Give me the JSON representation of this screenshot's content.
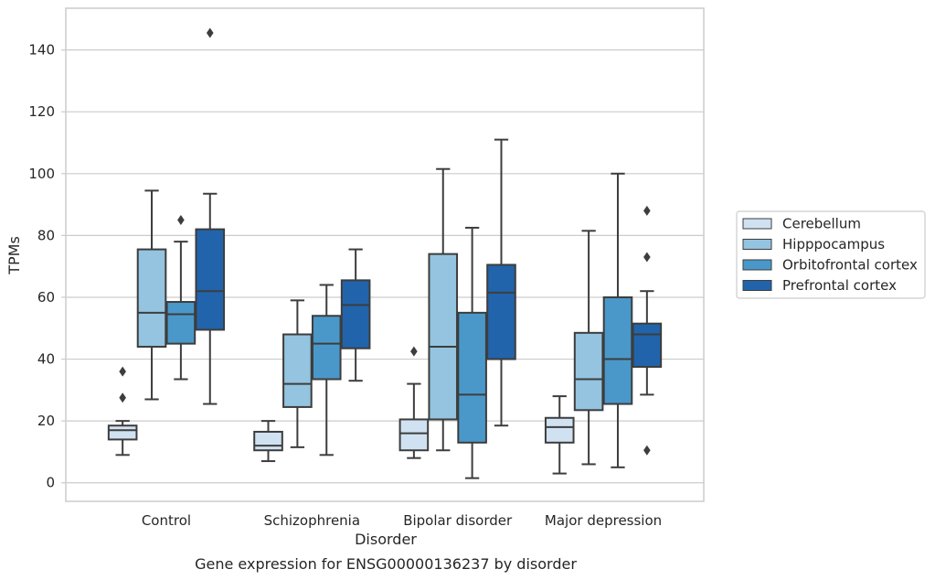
{
  "chart_data": {
    "type": "box",
    "title": "",
    "caption": "Gene expression for ENSG00000136237 by disorder",
    "xlabel": "Disorder",
    "ylabel": "TPMs",
    "ylim": [
      -6,
      153.5
    ],
    "yticks": [
      0,
      20,
      40,
      60,
      80,
      100,
      120,
      140
    ],
    "grid": "horizontal",
    "legend_position": "right",
    "categories": [
      "Control",
      "Schizophrenia",
      "Bipolar disorder",
      "Major depression"
    ],
    "series": [
      {
        "name": "Cerebellum",
        "color": "#d0e1f2",
        "boxes": [
          {
            "whisker_low": 9,
            "q1": 14,
            "median": 17,
            "q3": 18.5,
            "whisker_high": 20,
            "outliers": [
              27.5,
              36
            ]
          },
          {
            "whisker_low": 7,
            "q1": 10.5,
            "median": 12,
            "q3": 16.5,
            "whisker_high": 20,
            "outliers": []
          },
          {
            "whisker_low": 8,
            "q1": 10.5,
            "median": 16,
            "q3": 20.5,
            "whisker_high": 32,
            "outliers": [
              42.5
            ]
          },
          {
            "whisker_low": 3,
            "q1": 13,
            "median": 18,
            "q3": 21,
            "whisker_high": 28,
            "outliers": []
          }
        ]
      },
      {
        "name": "Hipppocampus",
        "color": "#94c4df",
        "boxes": [
          {
            "whisker_low": 27,
            "q1": 44,
            "median": 55,
            "q3": 75.5,
            "whisker_high": 94.5,
            "outliers": []
          },
          {
            "whisker_low": 11.5,
            "q1": 24.5,
            "median": 32,
            "q3": 48,
            "whisker_high": 59,
            "outliers": []
          },
          {
            "whisker_low": 10.5,
            "q1": 20.5,
            "median": 44,
            "q3": 74,
            "whisker_high": 101.5,
            "outliers": []
          },
          {
            "whisker_low": 6,
            "q1": 23.5,
            "median": 33.5,
            "q3": 48.5,
            "whisker_high": 81.5,
            "outliers": []
          }
        ]
      },
      {
        "name": "Orbitofrontal cortex",
        "color": "#4a98c9",
        "boxes": [
          {
            "whisker_low": 33.5,
            "q1": 45,
            "median": 54.5,
            "q3": 58.5,
            "whisker_high": 78,
            "outliers": [
              85
            ]
          },
          {
            "whisker_low": 9,
            "q1": 33.5,
            "median": 45,
            "q3": 54,
            "whisker_high": 64,
            "outliers": []
          },
          {
            "whisker_low": 1.5,
            "q1": 13,
            "median": 28.5,
            "q3": 55,
            "whisker_high": 82.5,
            "outliers": []
          },
          {
            "whisker_low": 5,
            "q1": 25.5,
            "median": 40,
            "q3": 60,
            "whisker_high": 100,
            "outliers": []
          }
        ]
      },
      {
        "name": "Prefrontal cortex",
        "color": "#2164ab",
        "boxes": [
          {
            "whisker_low": 25.5,
            "q1": 49.5,
            "median": 62,
            "q3": 82,
            "whisker_high": 93.5,
            "outliers": [
              145.5
            ]
          },
          {
            "whisker_low": 33,
            "q1": 43.5,
            "median": 57.5,
            "q3": 65.5,
            "whisker_high": 75.5,
            "outliers": []
          },
          {
            "whisker_low": 18.5,
            "q1": 40,
            "median": 61.5,
            "q3": 70.5,
            "whisker_high": 111,
            "outliers": []
          },
          {
            "whisker_low": 28.5,
            "q1": 37.5,
            "median": 48,
            "q3": 51.5,
            "whisker_high": 62,
            "outliers": [
              10.5,
              73,
              88
            ]
          }
        ]
      }
    ]
  }
}
